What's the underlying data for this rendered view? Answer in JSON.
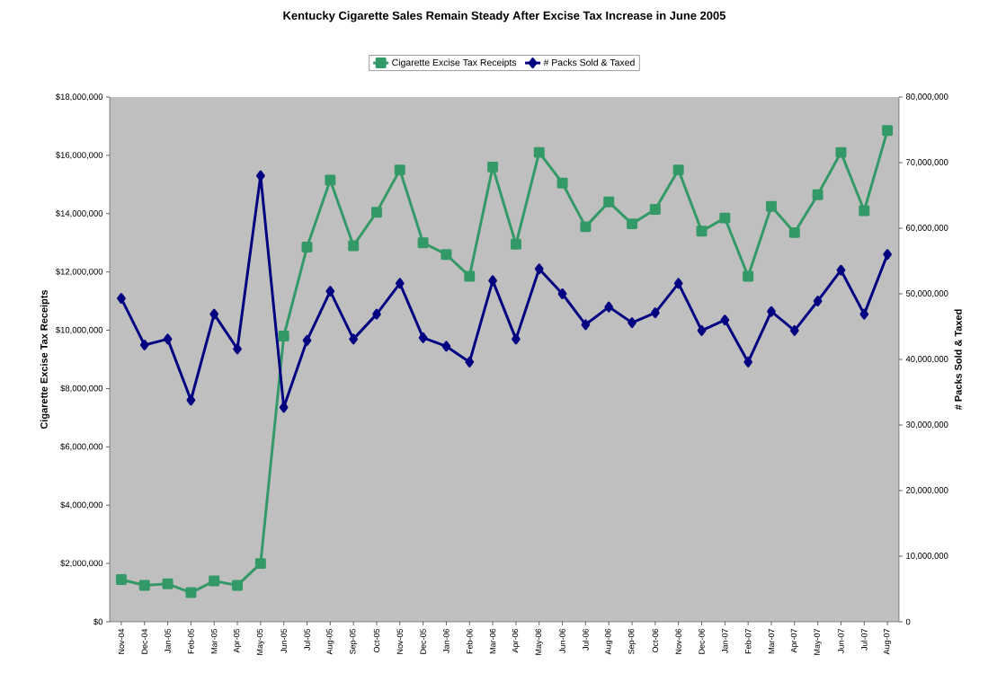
{
  "chart_data": {
    "type": "line",
    "title": "Kentucky Cigarette Sales Remain Steady After Excise Tax Increase in June 2005",
    "categories": [
      "Nov-04",
      "Dec-04",
      "Jan-05",
      "Feb-05",
      "Mar-05",
      "Apr-05",
      "May-05",
      "Jun-05",
      "Jul-05",
      "Aug-05",
      "Sep-05",
      "Oct-05",
      "Nov-05",
      "Dec-05",
      "Jan-06",
      "Feb-06",
      "Mar-06",
      "Apr-06",
      "May-06",
      "Jun-06",
      "Jul-06",
      "Aug-06",
      "Sep-06",
      "Oct-06",
      "Nov-06",
      "Dec-06",
      "Jan-07",
      "Feb-07",
      "Mar-07",
      "Apr-07",
      "May-07",
      "Jun-07",
      "Jul-07",
      "Aug-07"
    ],
    "series": [
      {
        "name": "Cigarette Excise Tax Receipts",
        "color": "#339966",
        "marker": "square",
        "values": [
          1450000,
          1250000,
          1300000,
          1000000,
          1400000,
          1250000,
          2000000,
          9800000,
          12850000,
          15150000,
          12900000,
          14050000,
          15500000,
          13000000,
          12600000,
          11850000,
          15600000,
          12950000,
          16100000,
          15050000,
          13550000,
          14400000,
          13650000,
          14150000,
          15500000,
          13400000,
          13850000,
          11850000,
          14250000,
          13350000,
          14650000,
          16100000,
          14100000,
          16850000
        ]
      },
      {
        "name": "# Packs Sold & Taxed",
        "color": "#000080",
        "marker": "diamond",
        "axis": "y2",
        "values": [
          49300000,
          42200000,
          43100000,
          33800000,
          46900000,
          41600000,
          68000000,
          32700000,
          42900000,
          50400000,
          43100000,
          46900000,
          51600000,
          43300000,
          42000000,
          39600000,
          52000000,
          43100000,
          53800000,
          50000000,
          45300000,
          48000000,
          45600000,
          47100000,
          51600000,
          44400000,
          46000000,
          39600000,
          47300000,
          44400000,
          48900000,
          53600000,
          46900000,
          56000000
        ]
      }
    ],
    "ylabel": "Cigarette Excise Tax Receipts",
    "y2label": "# Packs Sold & Taxed",
    "ylim": [
      0,
      18000000
    ],
    "yticks": [
      {
        "value": 0,
        "label": "$0"
      },
      {
        "value": 2000000,
        "label": "$2,000,000"
      },
      {
        "value": 4000000,
        "label": "$4,000,000"
      },
      {
        "value": 6000000,
        "label": "$6,000,000"
      },
      {
        "value": 8000000,
        "label": "$8,000,000"
      },
      {
        "value": 10000000,
        "label": "$10,000,000"
      },
      {
        "value": 12000000,
        "label": "$12,000,000"
      },
      {
        "value": 14000000,
        "label": "$14,000,000"
      },
      {
        "value": 16000000,
        "label": "$16,000,000"
      },
      {
        "value": 18000000,
        "label": "$18,000,000"
      }
    ],
    "y2lim": [
      0,
      80000000
    ],
    "y2ticks": [
      0,
      {
        "value": 10000000,
        "label": "10,000,000"
      },
      {
        "value": 20000000,
        "label": "20,000,000"
      },
      {
        "value": 30000000,
        "label": "30,000,000"
      },
      {
        "value": 40000000,
        "label": "40,000,000"
      },
      {
        "value": 50000000,
        "label": "50,000,000"
      },
      {
        "value": 60000000,
        "label": "60,000,000"
      },
      {
        "value": 70000000,
        "label": "70,000,000"
      },
      {
        "value": 80000000,
        "label": "80,000,000"
      }
    ],
    "legend": "top",
    "grid": false,
    "line_style": "solid"
  }
}
